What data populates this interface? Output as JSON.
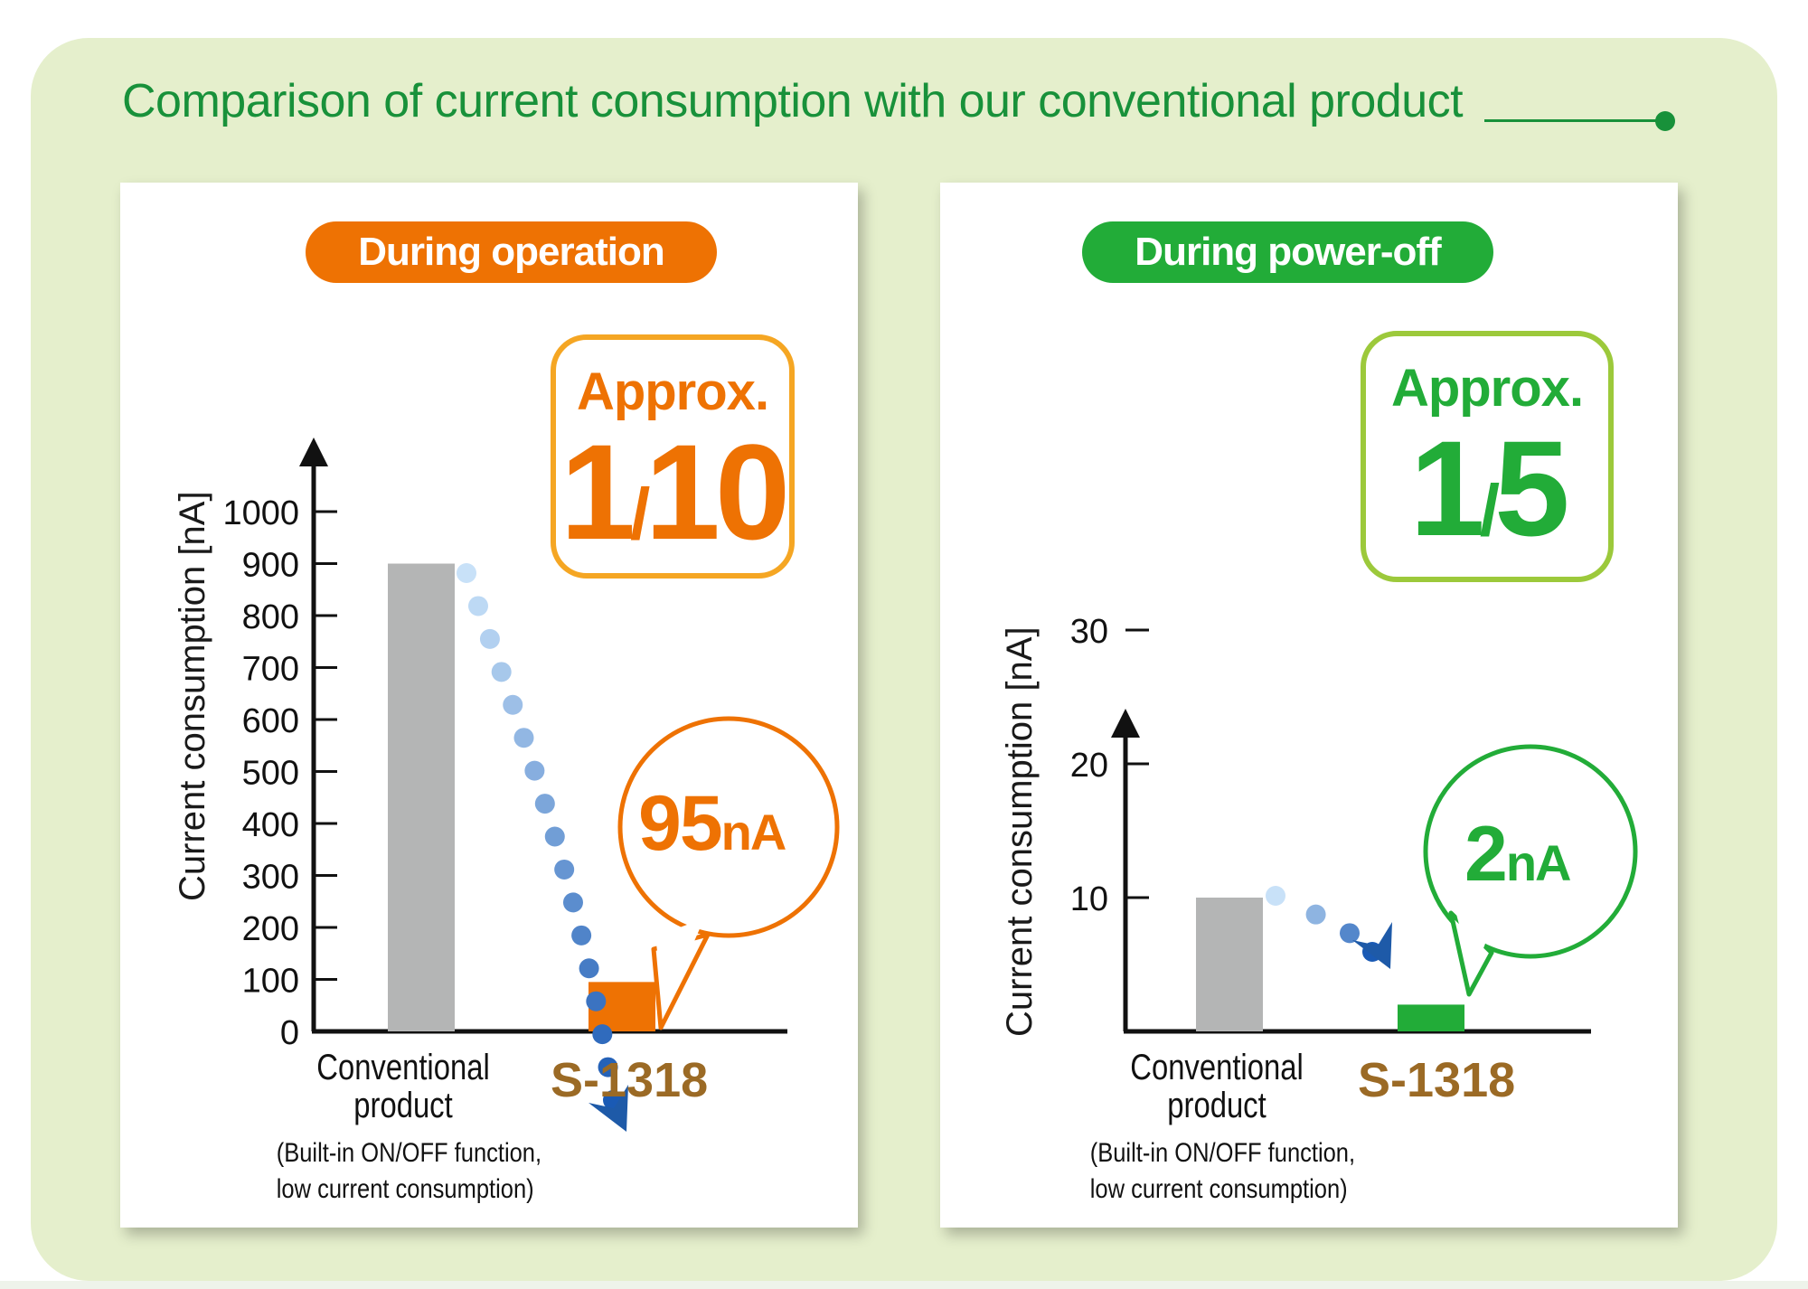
{
  "header": {
    "title": "Comparison of current consumption with our conventional product"
  },
  "colors": {
    "background": "#e5efcc",
    "header_green": "#18913a",
    "orange": "#ee7203",
    "orange_box": "#f5a623",
    "green": "#22ac38",
    "green_box": "#9cc93b",
    "gray_bar": "#b4b5b5",
    "label_brown": "#9b6a25"
  },
  "panels": [
    {
      "pill_label": "During operation",
      "ratio_approx": "Approx.",
      "ratio_num": "1",
      "ratio_slash": "/",
      "ratio_den": "10",
      "bubble_num": "95",
      "bubble_unit": "nA",
      "ylabel": "Current consumption [nA]",
      "cat1_line1": "Conventional",
      "cat1_line2": "product",
      "cat1_sub1": "(Built-in ON/OFF function,",
      "cat1_sub2": "low current consumption)",
      "cat2": "S-1318"
    },
    {
      "pill_label": "During power-off",
      "ratio_approx": "Approx.",
      "ratio_num": "1",
      "ratio_slash": "/",
      "ratio_den": "5",
      "bubble_num": "2",
      "bubble_unit": "nA",
      "ylabel": "Current consumption [nA]",
      "cat1_line1": "Conventional",
      "cat1_line2": "product",
      "cat1_sub1": "(Built-in ON/OFF function,",
      "cat1_sub2": "low current consumption)",
      "cat2": "S-1318"
    }
  ],
  "chart_data": [
    {
      "type": "bar",
      "title": "During operation",
      "ylabel": "Current consumption [nA]",
      "categories": [
        "Conventional product (Built-in ON/OFF function, low current consumption)",
        "S-1318"
      ],
      "values": [
        900,
        95
      ],
      "ylim": [
        0,
        1000
      ],
      "yticks": [
        0,
        100,
        200,
        300,
        400,
        500,
        600,
        700,
        800,
        900,
        1000
      ],
      "colors": [
        "#b4b5b5",
        "#ee7203"
      ],
      "annotations": [
        "Approx. 1/10",
        "95nA"
      ]
    },
    {
      "type": "bar",
      "title": "During power-off",
      "ylabel": "Current consumption [nA]",
      "categories": [
        "Conventional product (Built-in ON/OFF function, low current consumption)",
        "S-1318"
      ],
      "values": [
        10,
        2
      ],
      "ylim": [
        0,
        30
      ],
      "yticks": [
        10,
        20,
        30
      ],
      "colors": [
        "#b4b5b5",
        "#22ac38"
      ],
      "annotations": [
        "Approx. 1/5",
        "2nA"
      ]
    }
  ]
}
